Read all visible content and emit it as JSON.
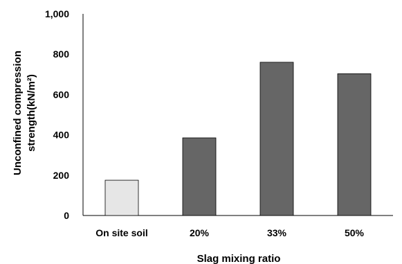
{
  "chart_data": {
    "type": "bar",
    "title": "",
    "categories": [
      "On site soil",
      "20%",
      "33%",
      "50%"
    ],
    "values": [
      175,
      385,
      760,
      703
    ],
    "colors": [
      "#e6e6e6",
      "#666666",
      "#666666",
      "#666666"
    ],
    "bar_outline": "#000000",
    "xlabel": "Slag mixing ratio",
    "ylabel_lines": [
      "Unconfined compression",
      "strength(kN/m²)"
    ],
    "ylim": [
      0,
      1000
    ],
    "yticks": [
      0,
      200,
      400,
      600,
      800,
      1000
    ],
    "ytick_labels": [
      "0",
      "200",
      "400",
      "600",
      "800",
      "1,000"
    ],
    "grid": false,
    "legend": "none"
  }
}
